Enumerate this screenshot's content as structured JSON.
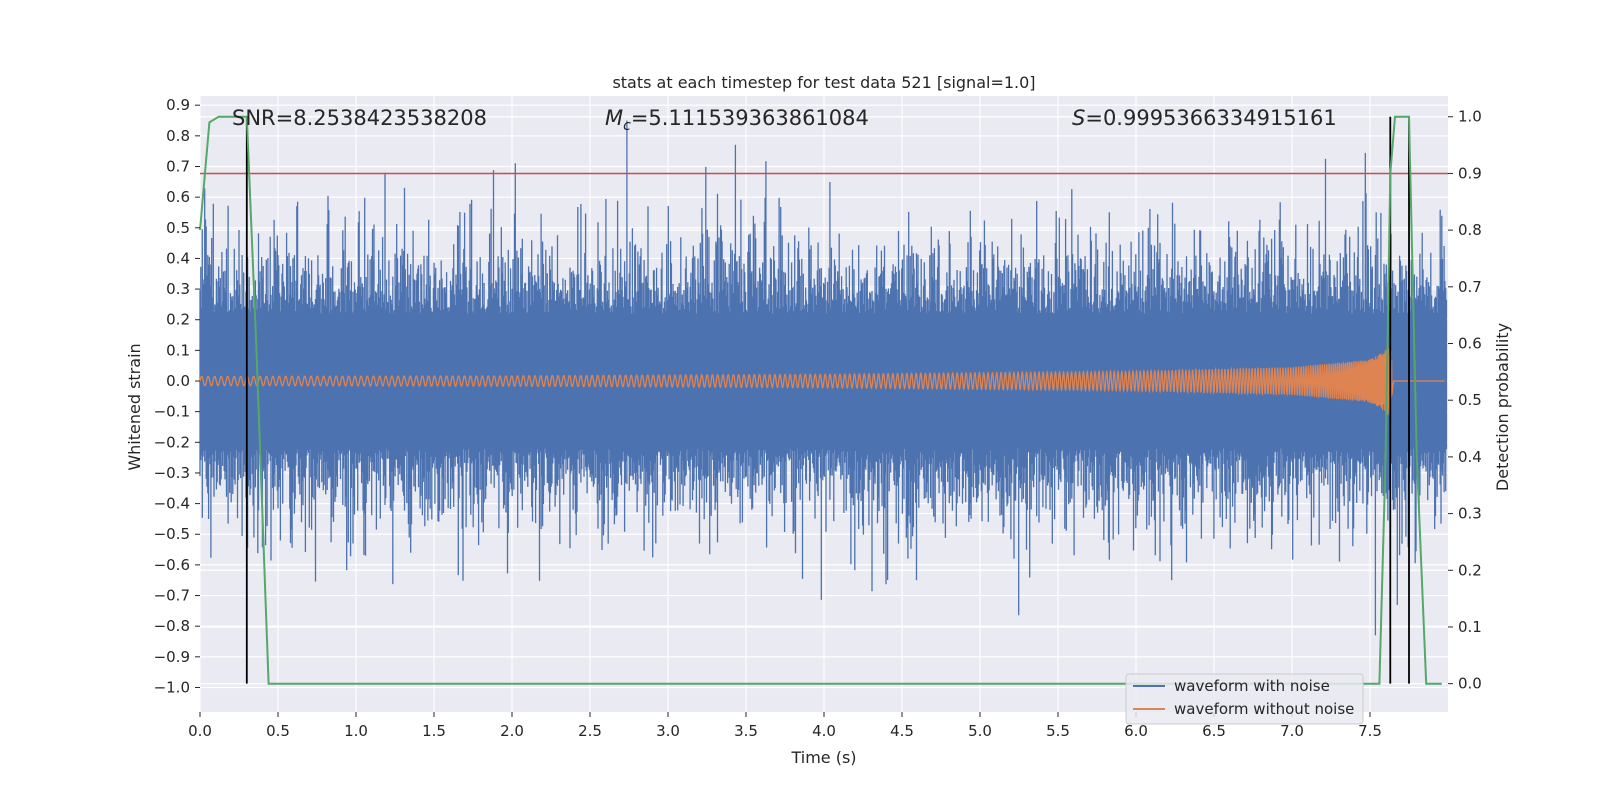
{
  "chart_data": {
    "type": "line",
    "title": "stats at each timestep for test data 521 [signal=1.0]",
    "xlabel": "Time (s)",
    "ylabel_left": "Whitened strain",
    "ylabel_right": "Detection probability",
    "xlim": [
      0.0,
      8.0
    ],
    "ylim_left": [
      -1.08,
      0.93
    ],
    "ylim_right": [
      -0.05,
      1.0366
    ],
    "x_ticks": [
      "0.0",
      "0.5",
      "1.0",
      "1.5",
      "2.0",
      "2.5",
      "3.0",
      "3.5",
      "4.0",
      "4.5",
      "5.0",
      "5.5",
      "6.0",
      "6.5",
      "7.0",
      "7.5"
    ],
    "y_left_ticks": [
      "0.9",
      "0.8",
      "0.7",
      "0.6",
      "0.5",
      "0.4",
      "0.3",
      "0.2",
      "0.1",
      "0.0",
      "−0.1",
      "−0.2",
      "−0.3",
      "−0.4",
      "−0.5",
      "−0.6",
      "−0.7",
      "−0.8",
      "−0.9",
      "−1.0"
    ],
    "y_right_ticks": [
      "1.0",
      "0.9",
      "0.8",
      "0.7",
      "0.6",
      "0.5",
      "0.4",
      "0.3",
      "0.2",
      "0.1",
      "0.0"
    ],
    "grid": true,
    "legend_position": "bottom-right",
    "annotations": {
      "snr": "SNR=8.2538423538208",
      "mc_sym": "M",
      "mc_sub": "c",
      "mc_val": "=5.111539363861084",
      "s_sym": "S",
      "s_val": "=0.9995366334915161"
    },
    "threshold_line": {
      "axis": "right",
      "y": 0.9,
      "color": "#c44e52"
    },
    "vertical_lines": [
      0.3,
      7.63,
      7.75
    ],
    "series": [
      {
        "name": "waveform with noise",
        "color": "#4c72b0",
        "axis": "left",
        "description_noise_envelope": [
          -0.83,
          0.85
        ]
      },
      {
        "name": "waveform without noise",
        "color": "#dd8452",
        "axis": "left"
      },
      {
        "name": "",
        "color": "#55a868",
        "axis": "right",
        "x": [
          0.0,
          0.06,
          0.12,
          0.18,
          0.24,
          0.3,
          0.36,
          0.44,
          0.5,
          7.5,
          7.56,
          7.6,
          7.63,
          7.66,
          7.7,
          7.75,
          7.8,
          7.86,
          7.9,
          7.96
        ],
        "y": [
          0.8,
          0.99,
          1.0,
          1.0,
          1.0,
          1.0,
          0.6,
          0.0,
          0.0,
          0.0,
          0.0,
          0.4,
          0.9,
          1.0,
          1.0,
          1.0,
          0.4,
          0.0,
          0.0,
          0.0
        ]
      }
    ],
    "waveform_without_noise_amplitude": {
      "t": [
        0.0,
        2.0,
        4.0,
        6.0,
        7.0,
        7.5,
        7.6,
        7.63,
        7.65
      ],
      "amp": [
        0.015,
        0.017,
        0.022,
        0.032,
        0.045,
        0.07,
        0.1,
        0.12,
        0.0
      ]
    }
  }
}
